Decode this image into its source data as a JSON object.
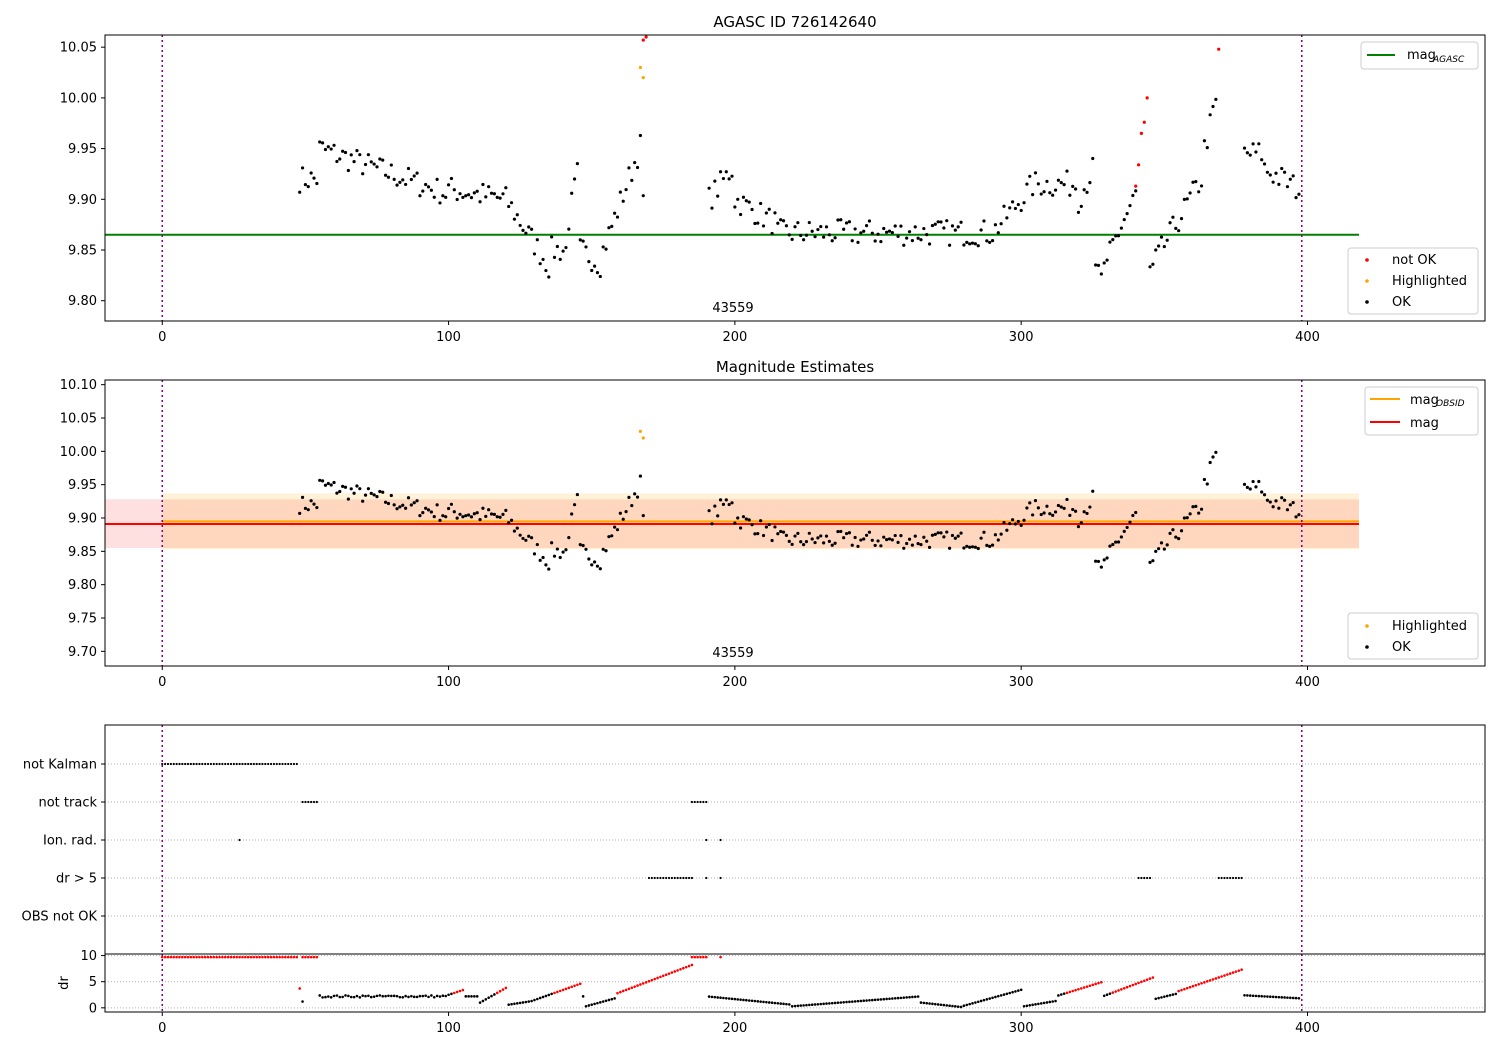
{
  "chart_data": [
    {
      "type": "scatter",
      "title": "AGASC ID 726142640",
      "xlim": [
        -20,
        462
      ],
      "ylim": [
        9.78,
        10.062
      ],
      "xticks": [
        "0",
        "100",
        "200",
        "300",
        "400"
      ],
      "yticks": [
        "9.80",
        "9.85",
        "9.90",
        "9.95",
        "10.00",
        "10.05"
      ],
      "annotation": "43559",
      "vlines": [
        0,
        398
      ],
      "hline": {
        "name": "mag_AGASC",
        "value": 9.865,
        "color": "#008000",
        "xmax": 418
      },
      "legend_top": [
        {
          "label": "mag",
          "sub": "AGASC",
          "color": "#008000"
        }
      ],
      "legend_bottom": [
        {
          "label": "not OK",
          "color": "#ff0000"
        },
        {
          "label": "Highlighted",
          "color": "#ffa500"
        },
        {
          "label": "OK",
          "color": "#000000"
        }
      ]
    },
    {
      "type": "scatter",
      "title": "Magnitude Estimates",
      "xlim": [
        -20,
        462
      ],
      "ylim": [
        9.678,
        10.107
      ],
      "xticks": [
        "0",
        "100",
        "200",
        "300",
        "400"
      ],
      "yticks": [
        "9.70",
        "9.75",
        "9.80",
        "9.85",
        "9.90",
        "9.95",
        "10.00",
        "10.05",
        "10.10"
      ],
      "annotation": "43559",
      "vlines": [
        0,
        398
      ],
      "mag_obsid": {
        "value": 9.895,
        "band": [
          9.853,
          9.937
        ],
        "x": [
          0,
          418
        ],
        "color": "#ffa500"
      },
      "mag": {
        "value": 9.891,
        "band": [
          9.855,
          9.928
        ],
        "x": [
          -20,
          418
        ],
        "color": "#ff0000"
      },
      "legend_top": [
        {
          "label": "mag",
          "sub": "OBSID",
          "color": "#ffa500"
        },
        {
          "label": "mag",
          "sub": "",
          "color": "#ff0000"
        }
      ],
      "legend_bottom": [
        {
          "label": "Highlighted",
          "color": "#ffa500"
        },
        {
          "label": "OK",
          "color": "#000000"
        }
      ]
    },
    {
      "type": "scatter",
      "title": "",
      "xlim": [
        -20,
        462
      ],
      "categories": [
        "not Kalman",
        "not track",
        "Ion. rad.",
        "dr > 5",
        "OBS not OK"
      ],
      "flags": {
        "not Kalman": [
          [
            0,
            47
          ]
        ],
        "not track": [
          [
            49,
            54
          ],
          [
            185,
            190
          ]
        ],
        "Ion. rad.": [
          [
            27,
            27
          ],
          [
            190,
            190
          ],
          [
            195,
            195
          ]
        ],
        "dr > 5": [
          [
            170,
            185
          ],
          [
            190,
            190
          ],
          [
            195,
            195
          ],
          [
            341,
            345
          ],
          [
            369,
            377
          ]
        ],
        "OBS not OK": []
      },
      "vlines": [
        0,
        398
      ]
    },
    {
      "type": "scatter",
      "title": "",
      "ylabel": "dr",
      "xlim": [
        -20,
        462
      ],
      "ylim": [
        -0.8,
        10.3
      ],
      "xticks": [
        "0",
        "100",
        "200",
        "300",
        "400"
      ],
      "yticks": [
        "0",
        "5",
        "10"
      ],
      "threshold": 5,
      "vlines": [
        0,
        398
      ]
    }
  ],
  "colors": {
    "ok": "#000000",
    "not_ok": "#ff0000",
    "highlight": "#ffa500",
    "vline": "#800080",
    "grid": "#b0b0b0"
  }
}
